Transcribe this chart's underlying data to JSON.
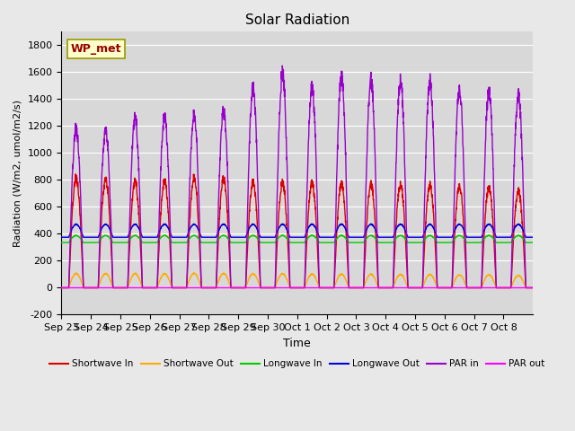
{
  "title": "Solar Radiation",
  "xlabel": "Time",
  "ylabel": "Radiation (W/m2, umol/m2/s)",
  "ylim": [
    -200,
    1900
  ],
  "yticks": [
    -200,
    0,
    200,
    400,
    600,
    800,
    1000,
    1200,
    1400,
    1600,
    1800
  ],
  "x_labels": [
    "Sep 23",
    "Sep 24",
    "Sep 25",
    "Sep 26",
    "Sep 27",
    "Sep 28",
    "Sep 29",
    "Sep 30",
    "Oct 1",
    "Oct 2",
    "Oct 3",
    "Oct 4",
    "Oct 5",
    "Oct 6",
    "Oct 7",
    "Oct 8"
  ],
  "n_days": 16,
  "shortwave_in_peak": [
    850,
    840,
    820,
    820,
    855,
    840,
    815,
    810,
    805,
    800,
    800,
    795,
    795,
    785,
    770,
    750
  ],
  "par_in_peak": [
    1230,
    1220,
    1310,
    1315,
    1340,
    1360,
    1540,
    1655,
    1540,
    1620,
    1605,
    1595,
    1595,
    1530,
    1510,
    1490
  ],
  "shortwave_out_peak": [
    110,
    110,
    110,
    108,
    112,
    110,
    108,
    108,
    105,
    105,
    105,
    103,
    103,
    100,
    100,
    95
  ],
  "longwave_in_base": 335,
  "longwave_in_peak_add": 55,
  "longwave_out_base": 375,
  "longwave_out_peak_add": 100,
  "colors": {
    "shortwave_in": "#dd0000",
    "shortwave_out": "#ffaa00",
    "longwave_in": "#00cc00",
    "longwave_out": "#0000dd",
    "par_in": "#9900cc",
    "par_out": "#ff00ff"
  },
  "annotation_text": "WP_met",
  "annotation_color": "#990000",
  "annotation_bg": "#ffffcc",
  "bg_color": "#e8e8e8",
  "plot_bg_color": "#d8d8d8",
  "grid_color": "#ffffff",
  "linewidth": 1.0
}
